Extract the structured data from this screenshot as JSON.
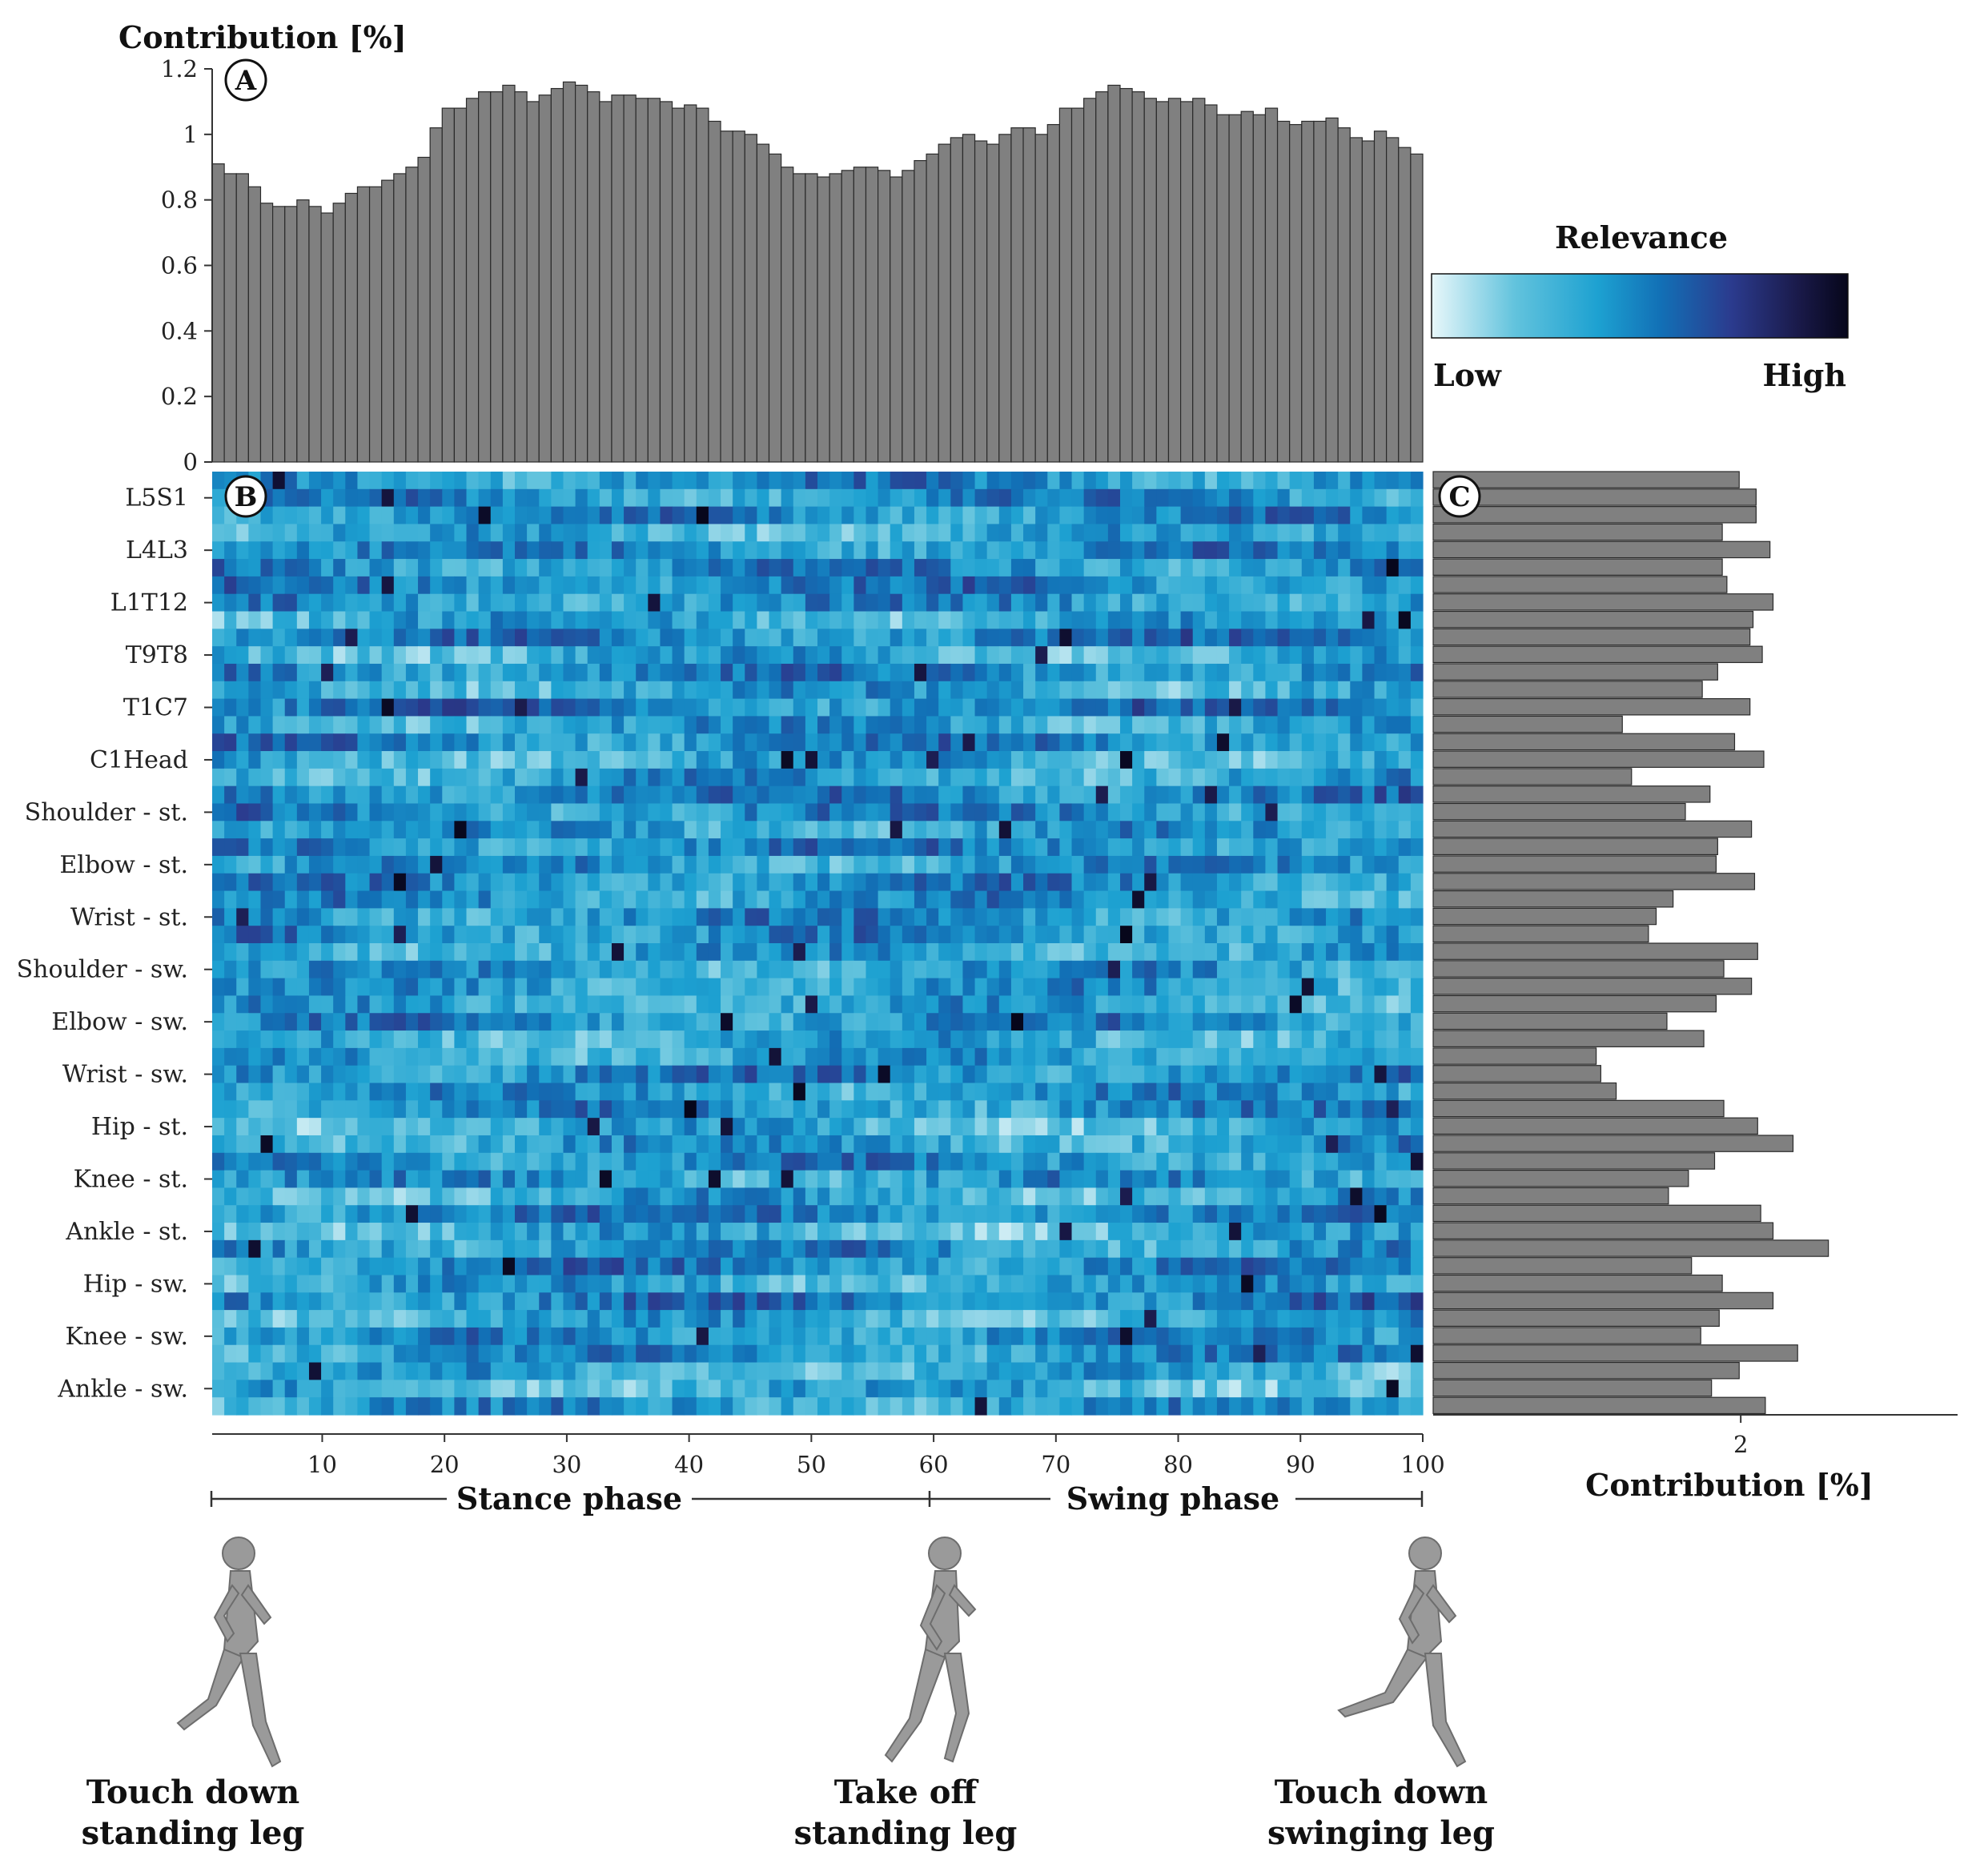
{
  "chart_data": [
    {
      "panel": "A",
      "type": "bar",
      "title": "Contribution [%]",
      "ylabel": "",
      "ylim": [
        0,
        1.2
      ],
      "yticks": [
        "0",
        "0.2",
        "0.4",
        "0.6",
        "0.8",
        "1",
        "1.2"
      ],
      "x": "1..100",
      "values": [
        0.91,
        0.88,
        0.88,
        0.84,
        0.79,
        0.78,
        0.78,
        0.8,
        0.78,
        0.76,
        0.79,
        0.82,
        0.84,
        0.84,
        0.86,
        0.88,
        0.9,
        0.93,
        1.02,
        1.08,
        1.08,
        1.11,
        1.13,
        1.13,
        1.15,
        1.13,
        1.1,
        1.12,
        1.14,
        1.16,
        1.15,
        1.13,
        1.1,
        1.12,
        1.12,
        1.11,
        1.11,
        1.1,
        1.08,
        1.09,
        1.08,
        1.04,
        1.01,
        1.01,
        1.0,
        0.97,
        0.94,
        0.9,
        0.88,
        0.88,
        0.87,
        0.88,
        0.89,
        0.9,
        0.9,
        0.89,
        0.87,
        0.89,
        0.92,
        0.94,
        0.97,
        0.99,
        1.0,
        0.98,
        0.97,
        1.0,
        1.02,
        1.02,
        1.0,
        1.03,
        1.08,
        1.08,
        1.11,
        1.13,
        1.15,
        1.14,
        1.13,
        1.11,
        1.1,
        1.11,
        1.1,
        1.11,
        1.09,
        1.06,
        1.06,
        1.07,
        1.06,
        1.08,
        1.04,
        1.03,
        1.04,
        1.04,
        1.05,
        1.02,
        0.99,
        0.98,
        1.01,
        0.99,
        0.96,
        0.94
      ]
    },
    {
      "panel": "B",
      "type": "heatmap",
      "xlabel": "",
      "xticks": [
        "10",
        "20",
        "30",
        "40",
        "50",
        "60",
        "70",
        "80",
        "90",
        "100"
      ],
      "xlim": [
        1,
        100
      ],
      "row_labels": [
        "L5S1",
        "L4L3",
        "L1T12",
        "T9T8",
        "T1C7",
        "C1Head",
        "Shoulder - st.",
        "Elbow - st.",
        "Wrist - st.",
        "Shoulder - sw.",
        "Elbow - sw.",
        "Wrist - sw.",
        "Hip - st.",
        "Knee - st.",
        "Ankle - st.",
        "Hip - sw.",
        "Knee - sw.",
        "Ankle - sw."
      ],
      "rows": 54,
      "colorbar": {
        "title": "Relevance",
        "low_label": "Low",
        "high_label": "High",
        "colors": [
          "#e8f7fa",
          "#62c3dd",
          "#1da1d1",
          "#1270b6",
          "#2b3b8e",
          "#1a1a4a",
          "#06061a"
        ]
      }
    },
    {
      "panel": "C",
      "type": "bar",
      "orientation": "horizontal",
      "xlabel": "Contribution [%]",
      "xticks": [
        "2"
      ],
      "values": [
        1.99,
        2.1,
        2.1,
        1.88,
        2.19,
        1.88,
        1.91,
        2.21,
        2.08,
        2.06,
        2.14,
        1.85,
        1.75,
        2.06,
        1.23,
        1.96,
        2.15,
        1.29,
        1.8,
        1.64,
        2.07,
        1.85,
        1.84,
        2.09,
        1.56,
        1.45,
        1.4,
        2.11,
        1.89,
        2.07,
        1.84,
        1.52,
        1.76,
        1.06,
        1.09,
        1.19,
        1.89,
        2.11,
        2.34,
        1.83,
        1.66,
        1.53,
        2.13,
        2.21,
        2.57,
        1.68,
        1.88,
        2.21,
        1.86,
        1.74,
        2.37,
        1.99,
        1.81,
        2.16
      ]
    }
  ],
  "panel_labels": {
    "a": "A",
    "b": "B",
    "c": "C"
  },
  "phases": {
    "stance": "Stance phase",
    "swing": "Swing phase"
  },
  "captions": [
    {
      "line1": "Touch down",
      "line2": "standing leg"
    },
    {
      "line1": "Take off",
      "line2": "standing leg"
    },
    {
      "line1": "Touch down",
      "line2": "swinging leg"
    }
  ],
  "colors": {
    "bar_fill": "#808080",
    "bar_stroke": "#2b2b2b"
  }
}
